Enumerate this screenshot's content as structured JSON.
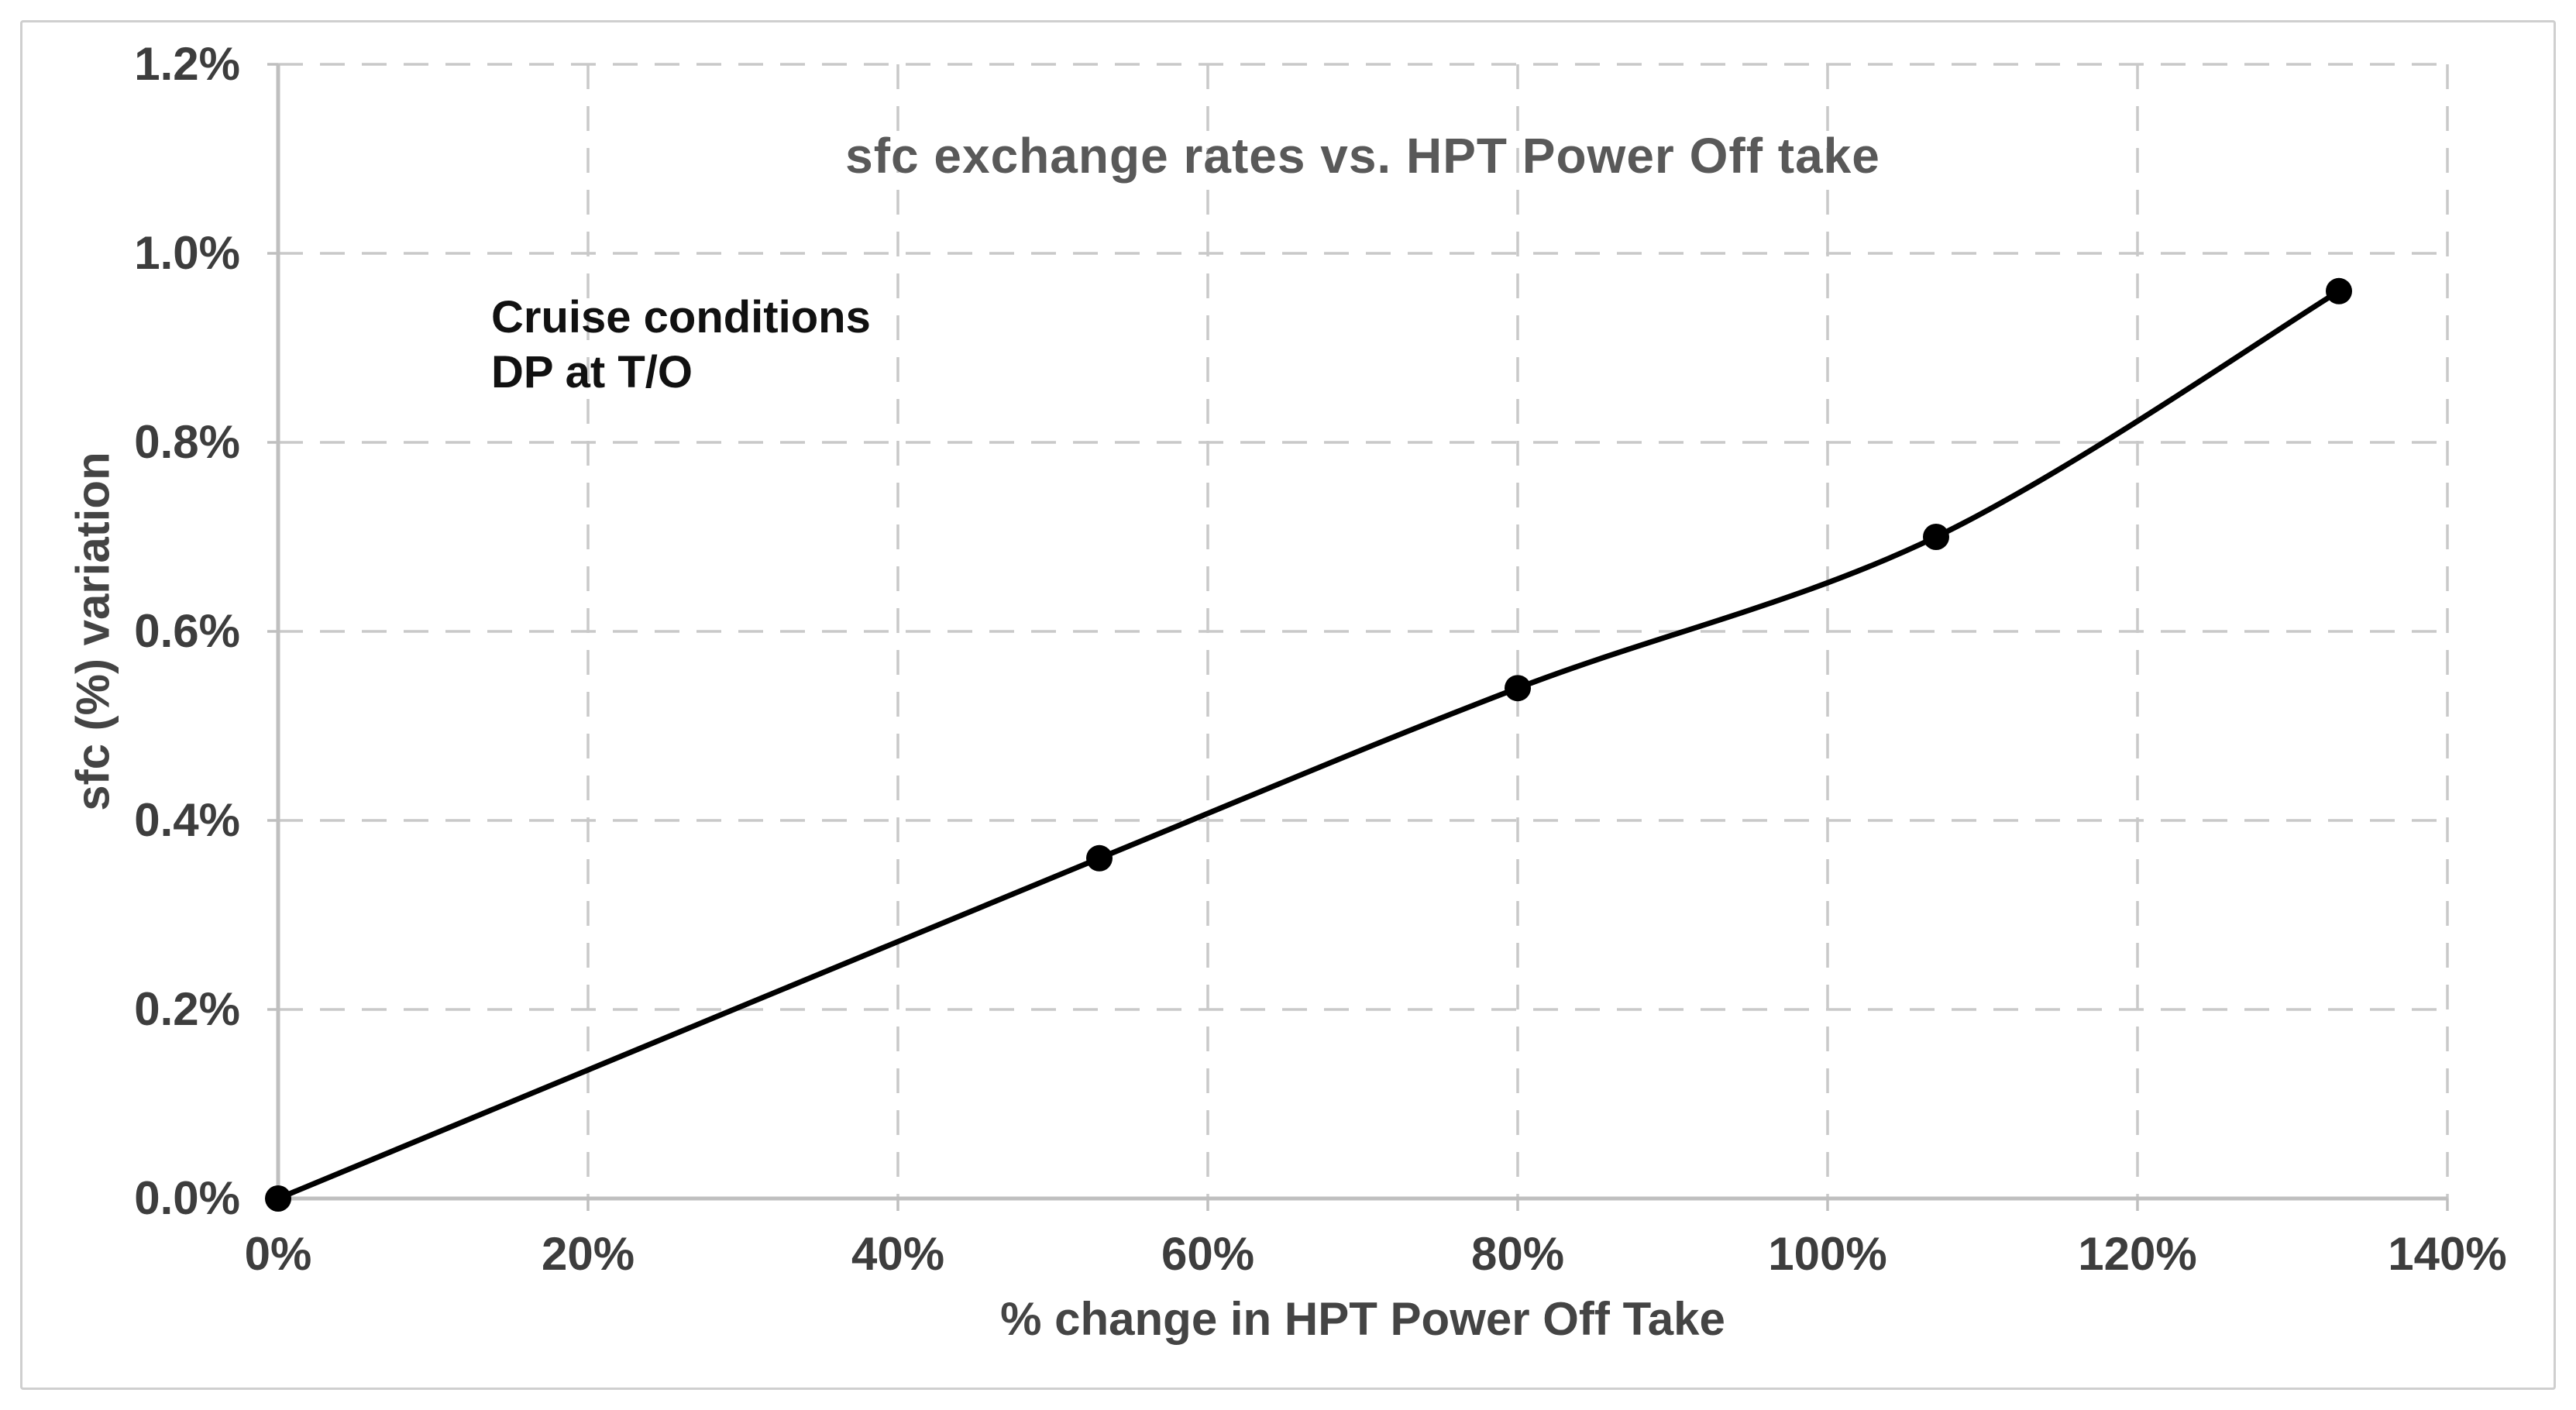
{
  "chart_data": {
    "type": "line",
    "title": "sfc exchange rates vs. HPT Power Off take",
    "xlabel": "% change in HPT Power Off Take",
    "ylabel": "sfc (%) variation",
    "annotation": {
      "line1": "Cruise conditions",
      "line2": "DP at T/O"
    },
    "x": [
      0,
      53,
      80,
      107,
      133
    ],
    "y": [
      0.0,
      0.36,
      0.54,
      0.7,
      0.96
    ],
    "x_tick_values": [
      0,
      20,
      40,
      60,
      80,
      100,
      120,
      140
    ],
    "x_tick_labels": [
      "0%",
      "20%",
      "40%",
      "60%",
      "80%",
      "100%",
      "120%",
      "140%"
    ],
    "y_tick_values": [
      0.0,
      0.2,
      0.4,
      0.6,
      0.8,
      1.0,
      1.2
    ],
    "y_tick_labels": [
      "0.0%",
      "0.2%",
      "0.4%",
      "0.6%",
      "0.8%",
      "1.0%",
      "1.2%"
    ],
    "xlim": [
      0,
      140
    ],
    "ylim": [
      0,
      1.2
    ],
    "grid": "dashed",
    "legend": "none",
    "marker": "circle",
    "line_style": "smooth",
    "colors": {
      "line": "#000000",
      "marker": "#000000",
      "grid": "#c9c9c9",
      "axis": "#bfbfbf",
      "title": "#595959",
      "tick_labels": "#3d3d3d",
      "axis_titles": "#444444",
      "annotation": "#111111",
      "figure_border": "#cfcfcf",
      "background": "#ffffff"
    }
  }
}
